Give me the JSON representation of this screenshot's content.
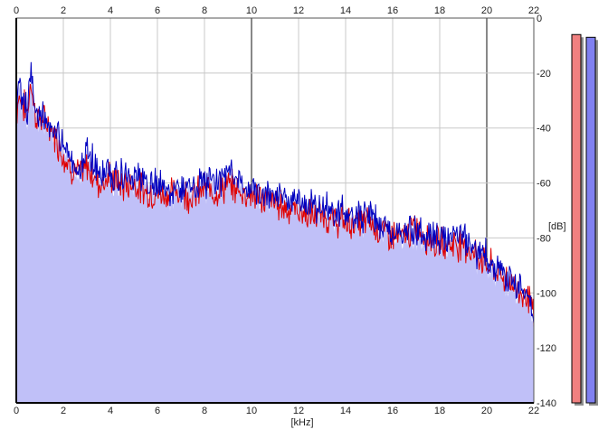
{
  "chart_data": {
    "type": "area",
    "xlabel": "[kHz]",
    "ylabel": "[dB]",
    "xlim": [
      0,
      22
    ],
    "ylim": [
      -140,
      0
    ],
    "x_ticks": [
      0,
      2,
      4,
      6,
      8,
      10,
      12,
      14,
      16,
      18,
      20,
      22
    ],
    "y_ticks": [
      0,
      -20,
      -40,
      -60,
      -80,
      -100,
      -120,
      -140
    ],
    "grid": true,
    "series": [
      {
        "color": "#e00000",
        "x": [
          0,
          0.1,
          0.3,
          0.5,
          0.6,
          0.8,
          1.0,
          1.3,
          1.6,
          2.0,
          2.4,
          2.8,
          3.0,
          3.5,
          4.0,
          4.5,
          5.0,
          5.5,
          6.0,
          6.5,
          7.0,
          7.5,
          8.0,
          8.5,
          9.0,
          9.5,
          10.0,
          10.5,
          11.0,
          11.5,
          12.0,
          12.5,
          13.0,
          13.5,
          14.0,
          14.5,
          15.0,
          15.5,
          16.0,
          16.5,
          17.0,
          17.5,
          18.0,
          18.5,
          19.0,
          19.5,
          20.0,
          20.5,
          21.0,
          21.5,
          21.8,
          22.0
        ],
        "values": [
          -36,
          -28,
          -32,
          -34,
          -22,
          -35,
          -37,
          -38,
          -42,
          -50,
          -55,
          -57,
          -54,
          -60,
          -58,
          -61,
          -60,
          -63,
          -64,
          -64,
          -63,
          -65,
          -62,
          -63,
          -61,
          -63,
          -64,
          -66,
          -67,
          -69,
          -70,
          -72,
          -72,
          -74,
          -74,
          -75,
          -74,
          -77,
          -79,
          -80,
          -76,
          -80,
          -82,
          -82,
          -82,
          -86,
          -89,
          -93,
          -96,
          -100,
          -101,
          -110
        ]
      },
      {
        "color": "#0000c0",
        "x": [
          0,
          0.1,
          0.3,
          0.5,
          0.6,
          0.8,
          1.0,
          1.3,
          1.6,
          2.0,
          2.4,
          2.8,
          3.0,
          3.5,
          4.0,
          4.5,
          5.0,
          5.5,
          6.0,
          6.5,
          7.0,
          7.5,
          8.0,
          8.5,
          9.0,
          9.5,
          10.0,
          10.5,
          11.0,
          11.5,
          12.0,
          12.5,
          13.0,
          13.5,
          14.0,
          14.5,
          15.0,
          15.5,
          16.0,
          16.5,
          17.0,
          17.5,
          18.0,
          18.5,
          19.0,
          19.5,
          20.0,
          20.5,
          21.0,
          21.5,
          21.8,
          22.0
        ],
        "values": [
          -34,
          -23,
          -32,
          -33,
          -19,
          -33,
          -34,
          -37,
          -40,
          -47,
          -53,
          -55,
          -48,
          -57,
          -56,
          -58,
          -58,
          -60,
          -61,
          -63,
          -62,
          -62,
          -59,
          -61,
          -55,
          -61,
          -62,
          -64,
          -64,
          -66,
          -66,
          -68,
          -69,
          -71,
          -71,
          -73,
          -70,
          -75,
          -78,
          -78,
          -78,
          -80,
          -80,
          -81,
          -80,
          -84,
          -87,
          -91,
          -95,
          -98,
          -100,
          -112
        ]
      }
    ]
  },
  "level_meter": {
    "min_db": -140,
    "max_db": 0,
    "bars": [
      {
        "color": "#f08080",
        "level_db": -6
      },
      {
        "color": "#8080f0",
        "level_db": -7
      }
    ]
  }
}
